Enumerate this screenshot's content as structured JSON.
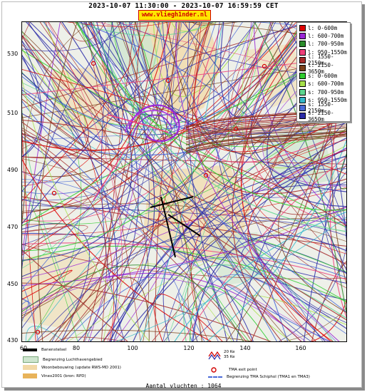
{
  "header": {
    "time_range": "2023-10-07 11:30:00 - 2023-10-07 16:59:59 CET",
    "site": "www.vliegh1nder.nl"
  },
  "axes": {
    "y_ticks": [
      "530",
      "510",
      "490",
      "470",
      "450",
      "430"
    ],
    "x_ticks": [
      "60",
      "80",
      "100",
      "120",
      "140",
      "160"
    ]
  },
  "legend": {
    "items": [
      {
        "label": "l: 0-600m",
        "color": "#dd0000"
      },
      {
        "label": "l: 600-700m",
        "color": "#9a27d6"
      },
      {
        "label": "l: 700-950m",
        "color": "#2b8c2b"
      },
      {
        "label": "l: 950-1550m",
        "color": "#ef3f7a"
      },
      {
        "label": "l: 1550-2150m",
        "color": "#a52a2a"
      },
      {
        "label": "l: 2150-3650m",
        "color": "#7a3f1a"
      },
      {
        "label": "s: 0-600m",
        "color": "#2ecc2e"
      },
      {
        "label": "s: 600-700m",
        "color": "#a6e04a"
      },
      {
        "label": "s: 700-950m",
        "color": "#5cd68f"
      },
      {
        "label": "s: 950-1550m",
        "color": "#35b7c9"
      },
      {
        "label": "s: 1550-2150m",
        "color": "#4a6ad8"
      },
      {
        "label": "s: 2150-3650m",
        "color": "#2b2ba8"
      }
    ]
  },
  "key": {
    "runway": "Banenstelsel",
    "airfield_boundary": "Begrenzing Luchthavengebied",
    "housing": "Woonbebouwing (update RWS-MD 2001)",
    "vinex": "Vinex2001 (bron: RPD)",
    "noise_20": "20 Ke",
    "noise_35": "35 Ke",
    "tma_exit": "TMA exit point",
    "tma_boundary": "Begrenzing TMA Schiphol  (TMA1 en TMA3)"
  },
  "footer": {
    "count": "Aantal vluchten : 1064"
  },
  "colors": {
    "map_bg": "#eef0e9",
    "urban": "#f2d9a6",
    "green": "#cfe6cf"
  }
}
